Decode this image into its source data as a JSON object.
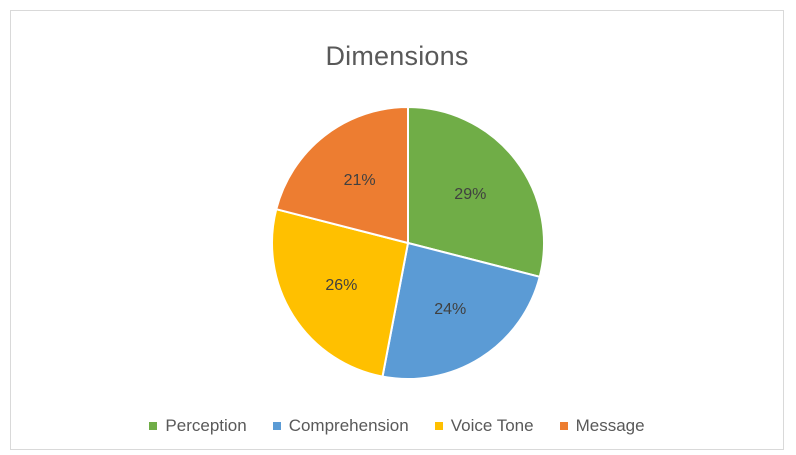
{
  "chart_data": {
    "type": "pie",
    "title": "Dimensions",
    "categories": [
      "Perception",
      "Comprehension",
      "Voice Tone",
      "Message"
    ],
    "values": [
      29,
      24,
      26,
      21
    ],
    "data_labels": [
      "29%",
      "24%",
      "26%",
      "21%"
    ],
    "colors": [
      "#70ad47",
      "#5b9bd5",
      "#ffc000",
      "#ed7d31"
    ],
    "legend_position": "bottom",
    "start_angle_deg": 0,
    "direction": "clockwise"
  }
}
